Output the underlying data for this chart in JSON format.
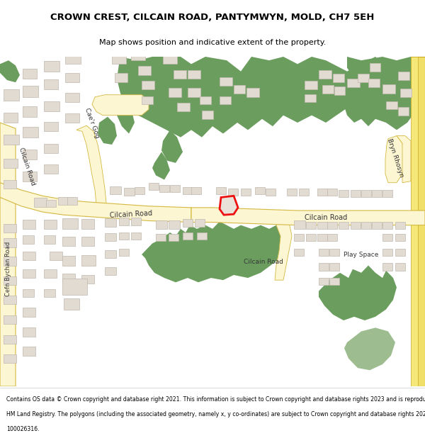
{
  "title": "CROWN CREST, CILCAIN ROAD, PANTYMWYN, MOLD, CH7 5EH",
  "subtitle": "Map shows position and indicative extent of the property.",
  "footer_lines": [
    "Contains OS data © Crown copyright and database right 2021. This information is subject to Crown copyright and database rights 2023 and is reproduced with the permission of",
    "HM Land Registry. The polygons (including the associated geometry, namely x, y co-ordinates) are subject to Crown copyright and database rights 2023 Ordnance Survey",
    "100026316."
  ],
  "green": "#6b9e5e",
  "green_light": "#9dbd90",
  "road_fill": "#fdf6d3",
  "road_border": "#d4b840",
  "building_fill": "#e2dbd2",
  "building_border": "#c0b8ae",
  "plot_red": "#ee1111",
  "white": "#ffffff",
  "text_dark": "#333333"
}
